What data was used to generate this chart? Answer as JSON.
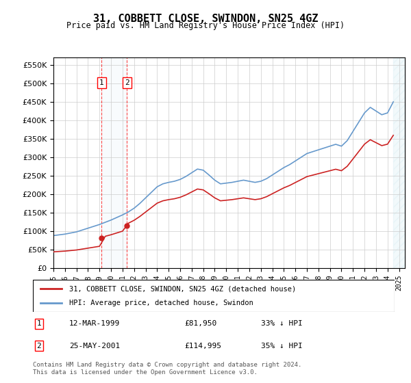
{
  "title": "31, COBBETT CLOSE, SWINDON, SN25 4GZ",
  "subtitle": "Price paid vs. HM Land Registry's House Price Index (HPI)",
  "hpi_color": "#6699cc",
  "price_color": "#cc2222",
  "legend_label_price": "31, COBBETT CLOSE, SWINDON, SN25 4GZ (detached house)",
  "legend_label_hpi": "HPI: Average price, detached house, Swindon",
  "footer": "Contains HM Land Registry data © Crown copyright and database right 2024.\nThis data is licensed under the Open Government Licence v3.0.",
  "transaction1_label": "1",
  "transaction1_date": "12-MAR-1999",
  "transaction1_price": "£81,950",
  "transaction1_hpi": "33% ↓ HPI",
  "transaction1_year": 1999.19,
  "transaction1_value": 81950,
  "transaction2_label": "2",
  "transaction2_date": "25-MAY-2001",
  "transaction2_price": "£114,995",
  "transaction2_hpi": "35% ↓ HPI",
  "transaction2_year": 2001.39,
  "transaction2_value": 114995,
  "ylim": [
    0,
    570000
  ],
  "yticks": [
    0,
    50000,
    100000,
    150000,
    200000,
    250000,
    300000,
    350000,
    400000,
    450000,
    500000,
    550000
  ],
  "xlim_start": 1995.0,
  "xlim_end": 2025.5,
  "xtick_years": [
    1995,
    1996,
    1997,
    1998,
    1999,
    2000,
    2001,
    2002,
    2003,
    2004,
    2005,
    2006,
    2007,
    2008,
    2009,
    2010,
    2011,
    2012,
    2013,
    2014,
    2015,
    2016,
    2017,
    2018,
    2019,
    2020,
    2021,
    2022,
    2023,
    2024,
    2025
  ]
}
